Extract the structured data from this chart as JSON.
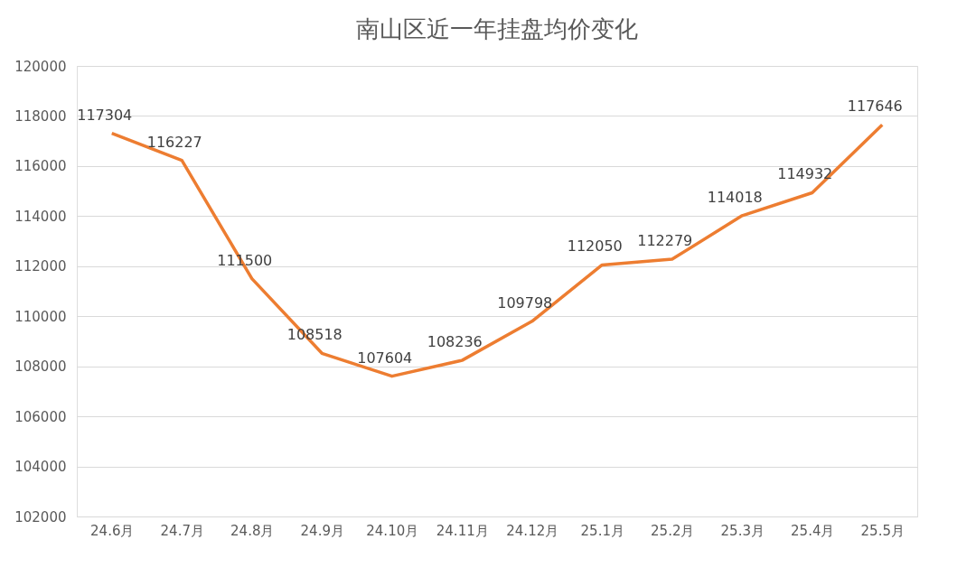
{
  "chart_data": {
    "type": "line",
    "title": "南山区近一年挂盘均价变化",
    "categories": [
      "24.6月",
      "24.7月",
      "24.8月",
      "24.9月",
      "24.10月",
      "24.11月",
      "24.12月",
      "25.1月",
      "25.2月",
      "25.3月",
      "25.4月",
      "25.5月"
    ],
    "series": [
      {
        "color": "#ed7d31",
        "values": [
          117304,
          116227,
          111500,
          108518,
          107604,
          108236,
          109798,
          112050,
          112279,
          114018,
          114932,
          117646
        ]
      }
    ],
    "ylim": [
      102000,
      120000
    ],
    "yticks": [
      102000,
      104000,
      106000,
      108000,
      110000,
      112000,
      114000,
      116000,
      118000,
      120000
    ],
    "grid": "y",
    "data_labels": true,
    "marker": "none",
    "line_style": "solid",
    "legend": false
  }
}
